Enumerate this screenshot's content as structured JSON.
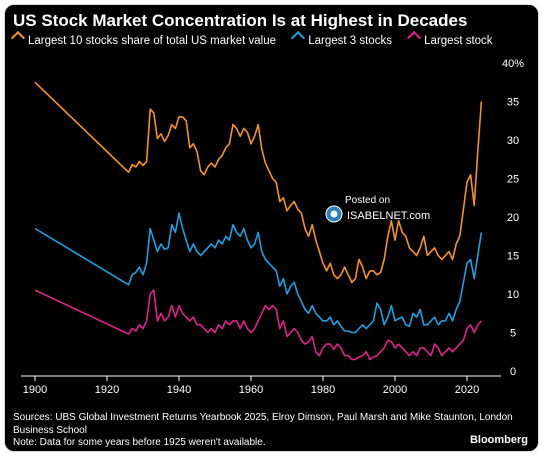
{
  "title": "US Stock Market Concentration Is at Highest in Decades",
  "legend": [
    {
      "label": "Largest 10 stocks share of total US market value",
      "color": "#f7931e"
    },
    {
      "label": "Largest 3 stocks",
      "color": "#1ba1e2"
    },
    {
      "label": "Largest stock",
      "color": "#e0218a"
    }
  ],
  "footer": {
    "sources": "Sources: UBS Global Investment Returns Yearbook 2025, Elroy Dimson, Paul Marsh and Mike Staunton, London Business School",
    "note": "Note: Data for some years before 1925 weren't available.",
    "brand": "Bloomberg"
  },
  "watermark": {
    "posted": "Posted on",
    "site": "ISABELNET.com"
  },
  "chart_data": {
    "type": "line",
    "title": "US Stock Market Concentration Is at Highest in Decades",
    "xlim": [
      1900,
      2025
    ],
    "ylim": [
      0,
      40
    ],
    "x_ticks": [
      "1900",
      "1920",
      "1940",
      "1960",
      "1980",
      "2000",
      "2020"
    ],
    "y_ticks": [
      "0",
      "5",
      "10",
      "15",
      "20",
      "25",
      "30",
      "35",
      "40%"
    ],
    "y_axis_side": "right",
    "grid": false,
    "legend_position": "top",
    "series": [
      {
        "name": "Largest 10 stocks share of total US market value",
        "color": "#f7931e",
        "x": [
          1900,
          1926,
          1927,
          1928,
          1929,
          1930,
          1931,
          1932,
          1933,
          1934,
          1935,
          1936,
          1937,
          1938,
          1939,
          1940,
          1941,
          1942,
          1943,
          1944,
          1945,
          1946,
          1947,
          1948,
          1949,
          1950,
          1951,
          1952,
          1953,
          1954,
          1955,
          1956,
          1957,
          1958,
          1959,
          1960,
          1961,
          1962,
          1963,
          1964,
          1965,
          1966,
          1967,
          1968,
          1969,
          1970,
          1971,
          1972,
          1973,
          1974,
          1975,
          1976,
          1977,
          1978,
          1979,
          1980,
          1981,
          1982,
          1983,
          1984,
          1985,
          1986,
          1987,
          1988,
          1989,
          1990,
          1991,
          1992,
          1993,
          1994,
          1995,
          1996,
          1997,
          1998,
          1999,
          2000,
          2001,
          2002,
          2003,
          2004,
          2005,
          2006,
          2007,
          2008,
          2009,
          2010,
          2011,
          2012,
          2013,
          2014,
          2015,
          2016,
          2017,
          2018,
          2019,
          2020,
          2021,
          2022,
          2023,
          2024
        ],
        "y": [
          37.5,
          25.8,
          26.8,
          26.5,
          27.2,
          26.7,
          27.2,
          34.0,
          33.5,
          30.2,
          30.8,
          29.8,
          30.6,
          32.0,
          31.5,
          33.0,
          33.0,
          32.5,
          29.0,
          29.5,
          28.5,
          26.0,
          25.5,
          26.5,
          27.0,
          26.5,
          27.5,
          28.0,
          29.0,
          29.5,
          32.0,
          31.5,
          30.5,
          31.5,
          31.0,
          29.5,
          30.5,
          32.0,
          28.8,
          27.0,
          26.0,
          25.0,
          24.5,
          22.0,
          22.5,
          20.8,
          21.5,
          22.0,
          21.0,
          20.5,
          18.5,
          17.5,
          19.0,
          17.0,
          15.5,
          14.0,
          13.0,
          14.0,
          12.5,
          12.0,
          12.5,
          13.5,
          12.5,
          11.5,
          12.0,
          14.5,
          13.5,
          12.0,
          13.0,
          13.0,
          12.5,
          12.8,
          14.5,
          17.5,
          19.5,
          17.0,
          19.5,
          18.0,
          17.5,
          16.0,
          15.5,
          15.0,
          16.0,
          17.5,
          15.0,
          15.5,
          16.0,
          15.0,
          14.5,
          15.0,
          15.5,
          14.5,
          16.5,
          17.5,
          21.0,
          24.5,
          25.5,
          21.5,
          28.5,
          35.0
        ]
      },
      {
        "name": "Largest 3 stocks",
        "color": "#1ba1e2",
        "x": [
          1900,
          1926,
          1927,
          1928,
          1929,
          1930,
          1931,
          1932,
          1933,
          1934,
          1935,
          1936,
          1937,
          1938,
          1939,
          1940,
          1941,
          1942,
          1943,
          1944,
          1945,
          1946,
          1947,
          1948,
          1949,
          1950,
          1951,
          1952,
          1953,
          1954,
          1955,
          1956,
          1957,
          1958,
          1959,
          1960,
          1961,
          1962,
          1963,
          1964,
          1965,
          1966,
          1967,
          1968,
          1969,
          1970,
          1971,
          1972,
          1973,
          1974,
          1975,
          1976,
          1977,
          1978,
          1979,
          1980,
          1981,
          1982,
          1983,
          1984,
          1985,
          1986,
          1987,
          1988,
          1989,
          1990,
          1991,
          1992,
          1993,
          1994,
          1995,
          1996,
          1997,
          1998,
          1999,
          2000,
          2001,
          2002,
          2003,
          2004,
          2005,
          2006,
          2007,
          2008,
          2009,
          2010,
          2011,
          2012,
          2013,
          2014,
          2015,
          2016,
          2017,
          2018,
          2019,
          2020,
          2021,
          2022,
          2023,
          2024
        ],
        "y": [
          18.5,
          11.2,
          12.5,
          12.8,
          13.5,
          12.5,
          14.0,
          18.5,
          17.0,
          15.5,
          16.5,
          15.8,
          16.0,
          19.0,
          18.0,
          20.5,
          18.5,
          17.0,
          15.5,
          16.5,
          15.5,
          15.0,
          15.5,
          16.0,
          16.5,
          16.0,
          17.0,
          16.5,
          17.5,
          17.0,
          19.0,
          18.0,
          17.5,
          18.5,
          17.0,
          16.0,
          16.5,
          18.0,
          15.5,
          14.5,
          14.0,
          13.5,
          13.0,
          11.0,
          12.0,
          10.0,
          11.0,
          11.5,
          10.0,
          9.0,
          8.0,
          7.5,
          8.5,
          7.5,
          7.0,
          6.5,
          6.5,
          7.0,
          6.0,
          6.5,
          5.8,
          5.2,
          5.2,
          5.0,
          5.0,
          5.5,
          6.0,
          5.5,
          6.0,
          6.5,
          8.8,
          8.0,
          6.0,
          7.0,
          8.5,
          6.5,
          6.8,
          7.0,
          6.0,
          5.8,
          7.5,
          7.0,
          8.0,
          6.0,
          6.0,
          6.5,
          7.0,
          6.0,
          6.5,
          6.5,
          7.5,
          6.5,
          8.0,
          9.0,
          11.5,
          14.0,
          14.5,
          12.0,
          15.0,
          18.0
        ]
      },
      {
        "name": "Largest stock",
        "color": "#e0218a",
        "x": [
          1900,
          1926,
          1927,
          1928,
          1929,
          1930,
          1931,
          1932,
          1933,
          1934,
          1935,
          1936,
          1937,
          1938,
          1939,
          1940,
          1941,
          1942,
          1943,
          1944,
          1945,
          1946,
          1947,
          1948,
          1949,
          1950,
          1951,
          1952,
          1953,
          1954,
          1955,
          1956,
          1957,
          1958,
          1959,
          1960,
          1961,
          1962,
          1963,
          1964,
          1965,
          1966,
          1967,
          1968,
          1969,
          1970,
          1971,
          1972,
          1973,
          1974,
          1975,
          1976,
          1977,
          1978,
          1979,
          1980,
          1981,
          1982,
          1983,
          1984,
          1985,
          1986,
          1987,
          1988,
          1989,
          1990,
          1991,
          1992,
          1993,
          1994,
          1995,
          1996,
          1997,
          1998,
          1999,
          2000,
          2001,
          2002,
          2003,
          2004,
          2005,
          2006,
          2007,
          2008,
          2009,
          2010,
          2011,
          2012,
          2013,
          2014,
          2015,
          2016,
          2017,
          2018,
          2019,
          2020,
          2021,
          2022,
          2023,
          2024
        ],
        "y": [
          10.5,
          4.8,
          5.5,
          5.2,
          6.0,
          5.5,
          6.5,
          10.0,
          10.5,
          6.5,
          7.5,
          6.5,
          7.0,
          8.5,
          7.0,
          8.5,
          7.5,
          7.0,
          6.5,
          7.0,
          6.0,
          6.0,
          5.5,
          5.0,
          5.5,
          5.0,
          6.0,
          5.5,
          6.5,
          6.0,
          6.5,
          6.5,
          5.5,
          6.5,
          5.5,
          5.0,
          5.5,
          6.5,
          7.5,
          8.5,
          8.0,
          8.5,
          8.0,
          5.5,
          6.5,
          4.5,
          5.0,
          5.5,
          5.0,
          4.0,
          3.5,
          3.8,
          4.5,
          2.5,
          2.0,
          3.0,
          3.5,
          3.5,
          2.8,
          3.5,
          3.0,
          2.0,
          2.0,
          1.5,
          1.5,
          1.8,
          2.0,
          2.5,
          1.5,
          1.8,
          2.0,
          2.5,
          3.0,
          4.0,
          3.8,
          3.0,
          3.5,
          3.0,
          2.5,
          2.0,
          2.5,
          2.0,
          3.0,
          3.0,
          2.5,
          2.0,
          3.5,
          3.0,
          2.0,
          2.5,
          3.0,
          2.5,
          3.0,
          3.5,
          4.0,
          5.5,
          6.0,
          5.0,
          6.0,
          6.5
        ]
      }
    ]
  }
}
